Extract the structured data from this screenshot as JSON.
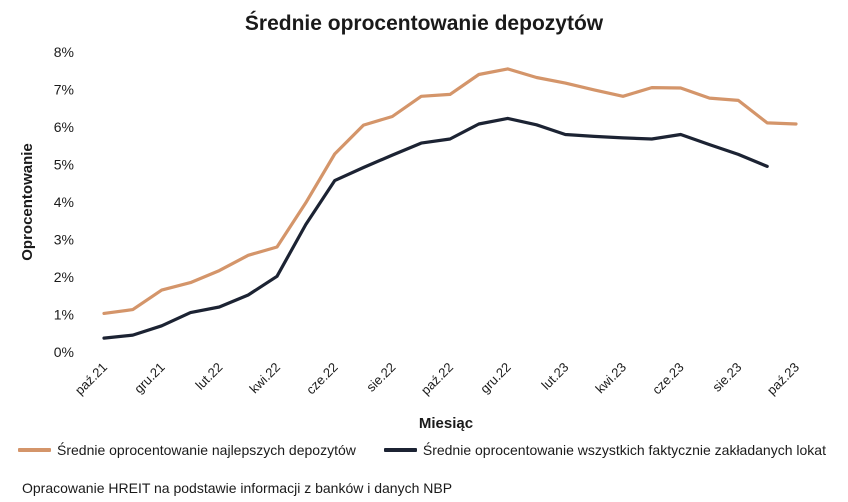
{
  "chart_data": {
    "type": "line",
    "title": "Średnie oprocentowanie depozytów",
    "xlabel": "Miesiąc",
    "ylabel": "Oprocentowanie",
    "ylim": [
      0,
      8
    ],
    "y_ticks": [
      "0%",
      "1%",
      "2%",
      "3%",
      "4%",
      "5%",
      "6%",
      "7%",
      "8%"
    ],
    "grid": false,
    "legend_position": "bottom",
    "categories": [
      "paź.21",
      "lis.21",
      "gru.21",
      "sty.22",
      "lut.22",
      "mar.22",
      "kwi.22",
      "maj.22",
      "cze.22",
      "lip.22",
      "sie.22",
      "wrz.22",
      "paź.22",
      "lis.22",
      "gru.22",
      "sty.23",
      "lut.23",
      "mar.23",
      "kwi.23",
      "maj.23",
      "cze.23",
      "lip.23",
      "sie.23",
      "wrz.23",
      "paź.23"
    ],
    "x_tick_labels": [
      "paź.21",
      "",
      "gru.21",
      "",
      "lut.22",
      "",
      "kwi.22",
      "",
      "cze.22",
      "",
      "sie.22",
      "",
      "paź.22",
      "",
      "gru.22",
      "",
      "lut.23",
      "",
      "kwi.23",
      "",
      "cze.23",
      "",
      "sie.23",
      "",
      "paź.23"
    ],
    "series": [
      {
        "name": "Średnie oprocentowanie najlepszych depozytów",
        "color": "#d4956a",
        "values": [
          1.03,
          1.13,
          1.65,
          1.85,
          2.17,
          2.58,
          2.8,
          3.98,
          5.28,
          6.05,
          6.28,
          6.82,
          6.87,
          7.4,
          7.55,
          7.32,
          7.17,
          6.99,
          6.82,
          7.05,
          7.04,
          6.77,
          6.71,
          6.11,
          6.08
        ]
      },
      {
        "name": "Średnie oprocentowanie wszystkich faktycznie zakładanych lokat",
        "color": "#1c2333",
        "values": [
          0.37,
          0.45,
          0.7,
          1.05,
          1.2,
          1.52,
          2.02,
          3.4,
          4.57,
          4.92,
          5.25,
          5.57,
          5.68,
          6.08,
          6.23,
          6.06,
          5.8,
          5.75,
          5.71,
          5.68,
          5.8,
          5.53,
          5.27,
          4.95,
          null
        ]
      }
    ]
  },
  "source_note": "Opracowanie HREIT na podstawie informacji z banków i danych NBP"
}
